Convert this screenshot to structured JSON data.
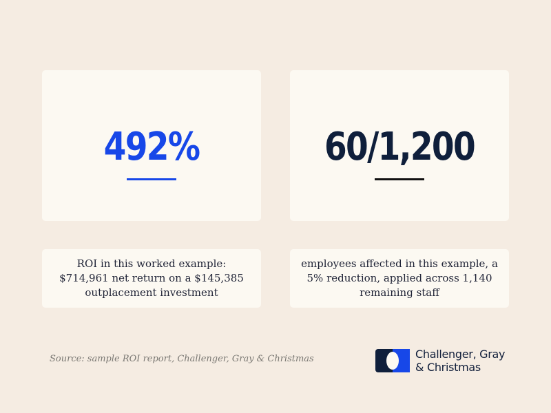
{
  "stats": [
    {
      "value": "492%",
      "color": "#1747e8",
      "underline_color": "#1747e8",
      "description": "ROI in this worked example: $714,961 net return on a $145,385 outplacement investment"
    },
    {
      "value": "60/1,200",
      "color": "#0f1f3b",
      "underline_color": "#111111",
      "description": "employees affected in this example, a 5% reduction, applied across 1,140 remaining staff"
    }
  ],
  "source": "Source: sample ROI report, Challenger, Gray & Christmas",
  "logo": {
    "line1": "Challenger, Gray",
    "line2": "& Christmas",
    "icon": "challenger-logo-icon",
    "colors": {
      "navy": "#0f1f3b",
      "blue": "#1747e8"
    }
  }
}
